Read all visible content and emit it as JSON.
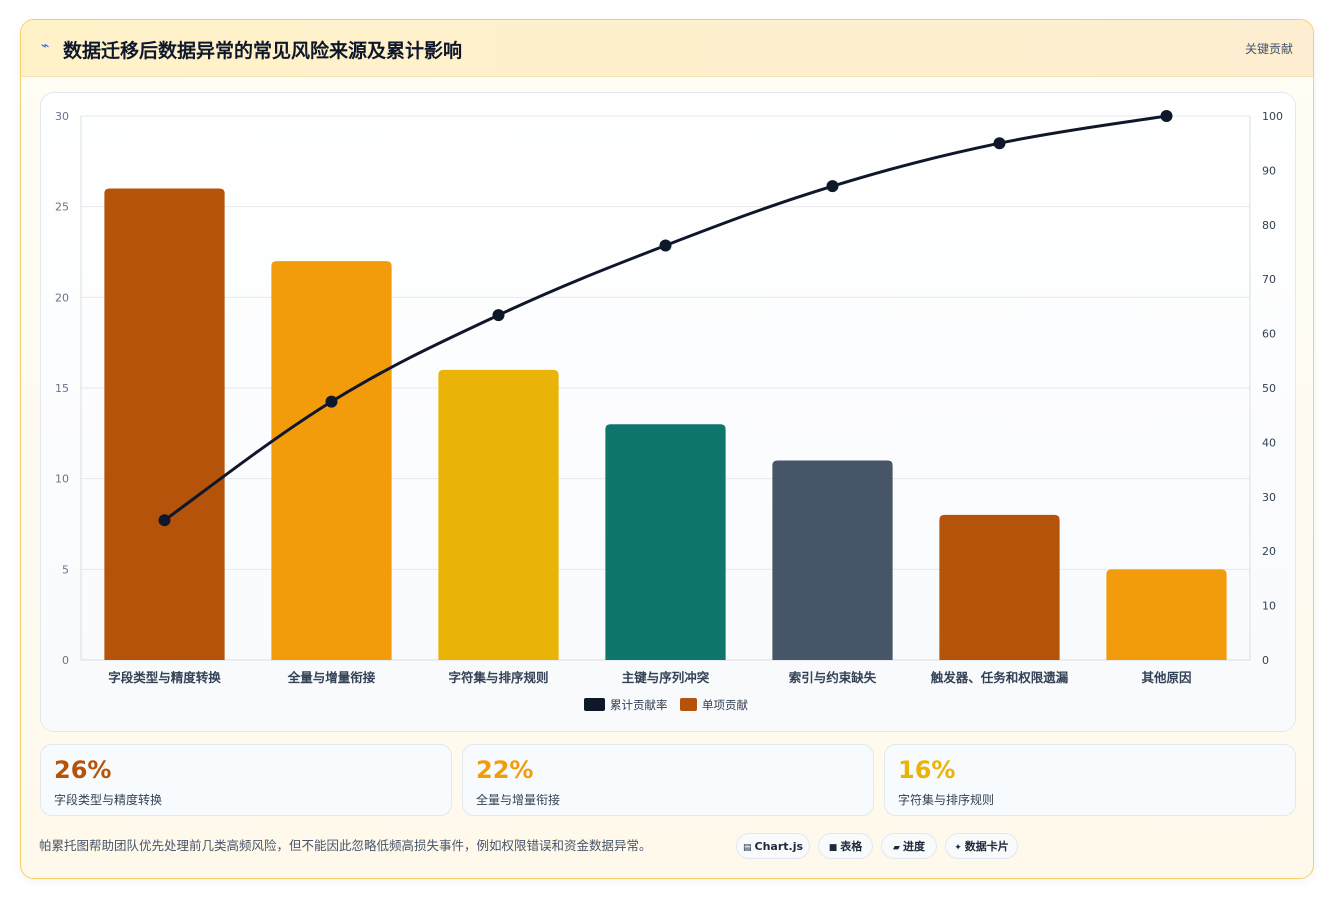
{
  "header": {
    "icon": "lightning-icon",
    "title": "数据迁移后数据异常的常见风险来源及累计影响",
    "badge": "关键贡献"
  },
  "chart_data": {
    "type": "bar",
    "categories": [
      "字段类型与精度转换",
      "全量与增量衔接",
      "字符集与排序规则",
      "主键与序列冲突",
      "索引与约束缺失",
      "触发器、任务和权限遗漏",
      "其他原因"
    ],
    "series": [
      {
        "name": "单项贡献",
        "type": "bar",
        "axis": "left",
        "values": [
          26,
          22,
          16,
          13,
          11,
          8,
          5
        ],
        "colors": [
          "#b45309",
          "#f39c0b",
          "#eab308",
          "#0f766e",
          "#475569",
          "#b45309",
          "#f39c0b"
        ]
      },
      {
        "name": "累计贡献率",
        "type": "line",
        "axis": "right",
        "values": [
          25.7,
          47.5,
          63.4,
          76.2,
          87.1,
          95.0,
          100
        ],
        "color": "#0f172a"
      }
    ],
    "ylim": [
      0,
      30
    ],
    "yticks": [
      0,
      5,
      10,
      15,
      20,
      25,
      30
    ],
    "y2lim": [
      0,
      100
    ],
    "y2ticks": [
      0,
      10,
      20,
      30,
      40,
      50,
      60,
      70,
      80,
      90,
      100
    ],
    "legend": [
      "累计贡献率",
      "单项贡献"
    ],
    "legend_colors": [
      "#0f172a",
      "#b45309"
    ],
    "legend_position": "bottom",
    "grid": true
  },
  "stats": [
    {
      "value": "26%",
      "label": "字段类型与精度转换",
      "color": "#b45309"
    },
    {
      "value": "22%",
      "label": "全量与增量衔接",
      "color": "#f39c0b"
    },
    {
      "value": "16%",
      "label": "字符集与排序规则",
      "color": "#eab308"
    }
  ],
  "footer": {
    "note": "帕累托图帮助团队优先处理前几类高频风险，但不能因此忽略低频高损失事件，例如权限错误和资金数据异常。",
    "chips": [
      {
        "icon": "chart-icon",
        "glyph": "▤",
        "label": "Chart.js"
      },
      {
        "icon": "table-icon",
        "glyph": "■",
        "label": "表格"
      },
      {
        "icon": "progress-icon",
        "glyph": "▰",
        "label": "进度"
      },
      {
        "icon": "sparkle-icon",
        "glyph": "✦",
        "label": "数据卡片"
      }
    ]
  }
}
